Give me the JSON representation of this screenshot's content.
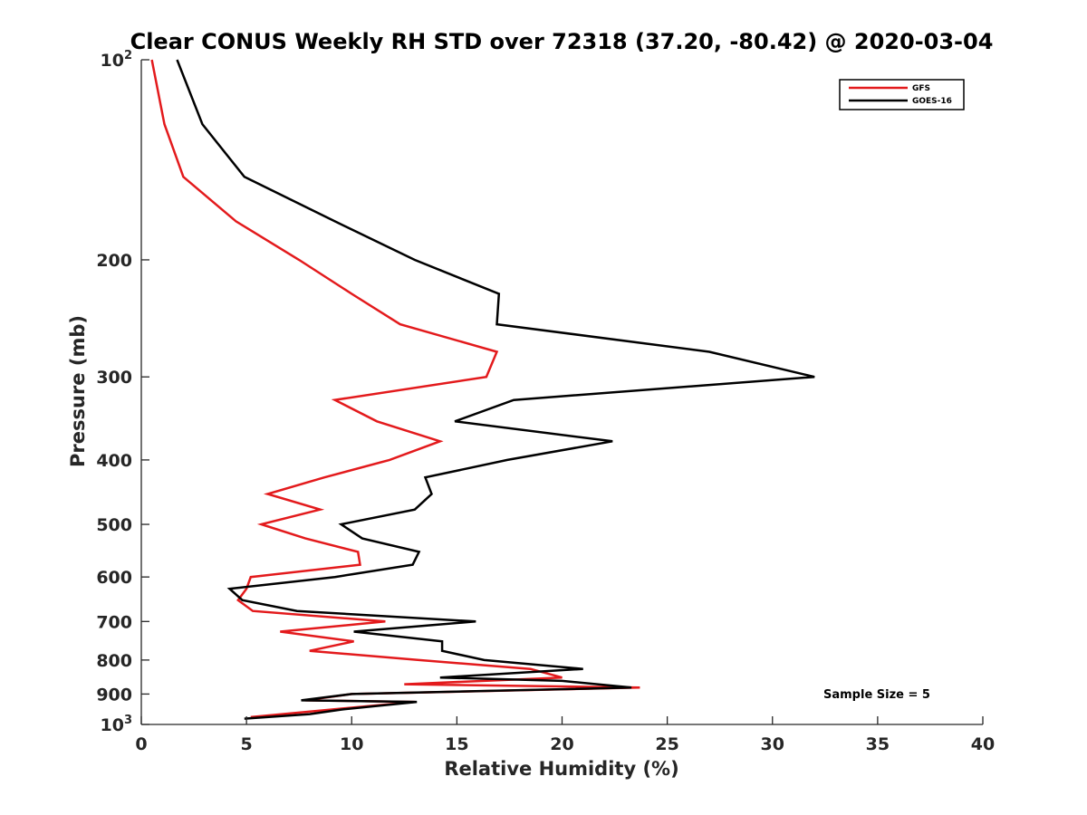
{
  "chart_data": {
    "type": "line",
    "title": "Clear CONUS Weekly RH STD over 72318 (37.20, -80.42) @ 2020-03-04",
    "xlabel": "Relative Humidity (%)",
    "ylabel": "Pressure (mb)",
    "xlim": [
      0,
      40
    ],
    "ylim": [
      100,
      1000
    ],
    "y_scale": "log",
    "y_reversed": true,
    "x_ticks": [
      "0",
      "5",
      "10",
      "15",
      "20",
      "25",
      "30",
      "35",
      "40"
    ],
    "y_ticks": [
      {
        "value": 100,
        "base": "10",
        "exp": "2"
      },
      {
        "value": 200,
        "label": "200"
      },
      {
        "value": 300,
        "label": "300"
      },
      {
        "value": 400,
        "label": "400"
      },
      {
        "value": 500,
        "label": "500"
      },
      {
        "value": 600,
        "label": "600"
      },
      {
        "value": 700,
        "label": "700"
      },
      {
        "value": 800,
        "label": "800"
      },
      {
        "value": 900,
        "label": "900"
      },
      {
        "value": 1000,
        "base": "10",
        "exp": "3"
      }
    ],
    "grid": false,
    "legend_position": "top-right",
    "annotation": "Sample Size = 5",
    "series": [
      {
        "name": "GFS",
        "color": "#e31a1c",
        "points": [
          {
            "x": 0.5,
            "y": 100
          },
          {
            "x": 1.1,
            "y": 125
          },
          {
            "x": 2.0,
            "y": 150
          },
          {
            "x": 4.5,
            "y": 175
          },
          {
            "x": 7.5,
            "y": 200
          },
          {
            "x": 10.0,
            "y": 225
          },
          {
            "x": 12.3,
            "y": 250
          },
          {
            "x": 16.9,
            "y": 275
          },
          {
            "x": 16.4,
            "y": 300
          },
          {
            "x": 9.2,
            "y": 325
          },
          {
            "x": 11.2,
            "y": 350
          },
          {
            "x": 14.2,
            "y": 375
          },
          {
            "x": 11.8,
            "y": 400
          },
          {
            "x": 8.7,
            "y": 425
          },
          {
            "x": 6.0,
            "y": 450
          },
          {
            "x": 8.5,
            "y": 475
          },
          {
            "x": 5.7,
            "y": 500
          },
          {
            "x": 7.8,
            "y": 525
          },
          {
            "x": 10.3,
            "y": 550
          },
          {
            "x": 10.4,
            "y": 575
          },
          {
            "x": 5.2,
            "y": 600
          },
          {
            "x": 5.0,
            "y": 625
          },
          {
            "x": 4.6,
            "y": 650
          },
          {
            "x": 5.3,
            "y": 675
          },
          {
            "x": 11.6,
            "y": 700
          },
          {
            "x": 6.6,
            "y": 725
          },
          {
            "x": 10.1,
            "y": 750
          },
          {
            "x": 8.0,
            "y": 775
          },
          {
            "x": 13.2,
            "y": 800
          },
          {
            "x": 18.5,
            "y": 825
          },
          {
            "x": 20.0,
            "y": 850
          },
          {
            "x": 12.5,
            "y": 870
          },
          {
            "x": 23.7,
            "y": 880
          },
          {
            "x": 10.0,
            "y": 900
          },
          {
            "x": 7.8,
            "y": 920
          },
          {
            "x": 13.0,
            "y": 925
          },
          {
            "x": 9.0,
            "y": 950
          },
          {
            "x": 5.2,
            "y": 975
          }
        ]
      },
      {
        "name": "GOES-16",
        "color": "#000000",
        "points": [
          {
            "x": 1.7,
            "y": 100
          },
          {
            "x": 2.9,
            "y": 125
          },
          {
            "x": 4.9,
            "y": 150
          },
          {
            "x": 9.2,
            "y": 175
          },
          {
            "x": 13.0,
            "y": 200
          },
          {
            "x": 17.0,
            "y": 225
          },
          {
            "x": 16.9,
            "y": 250
          },
          {
            "x": 27.0,
            "y": 275
          },
          {
            "x": 32.0,
            "y": 300
          },
          {
            "x": 17.7,
            "y": 325
          },
          {
            "x": 14.9,
            "y": 350
          },
          {
            "x": 22.4,
            "y": 375
          },
          {
            "x": 17.4,
            "y": 400
          },
          {
            "x": 13.5,
            "y": 425
          },
          {
            "x": 13.8,
            "y": 450
          },
          {
            "x": 13.0,
            "y": 475
          },
          {
            "x": 9.5,
            "y": 500
          },
          {
            "x": 10.5,
            "y": 525
          },
          {
            "x": 13.2,
            "y": 550
          },
          {
            "x": 12.9,
            "y": 575
          },
          {
            "x": 9.2,
            "y": 600
          },
          {
            "x": 4.2,
            "y": 625
          },
          {
            "x": 4.8,
            "y": 650
          },
          {
            "x": 7.4,
            "y": 675
          },
          {
            "x": 15.9,
            "y": 700
          },
          {
            "x": 10.1,
            "y": 725
          },
          {
            "x": 14.3,
            "y": 750
          },
          {
            "x": 14.3,
            "y": 775
          },
          {
            "x": 16.3,
            "y": 800
          },
          {
            "x": 21.0,
            "y": 825
          },
          {
            "x": 14.2,
            "y": 850
          },
          {
            "x": 20.0,
            "y": 860
          },
          {
            "x": 23.3,
            "y": 880
          },
          {
            "x": 10.0,
            "y": 900
          },
          {
            "x": 7.6,
            "y": 920
          },
          {
            "x": 13.1,
            "y": 925
          },
          {
            "x": 9.5,
            "y": 950
          },
          {
            "x": 8.0,
            "y": 965
          },
          {
            "x": 4.9,
            "y": 980
          }
        ]
      }
    ]
  }
}
